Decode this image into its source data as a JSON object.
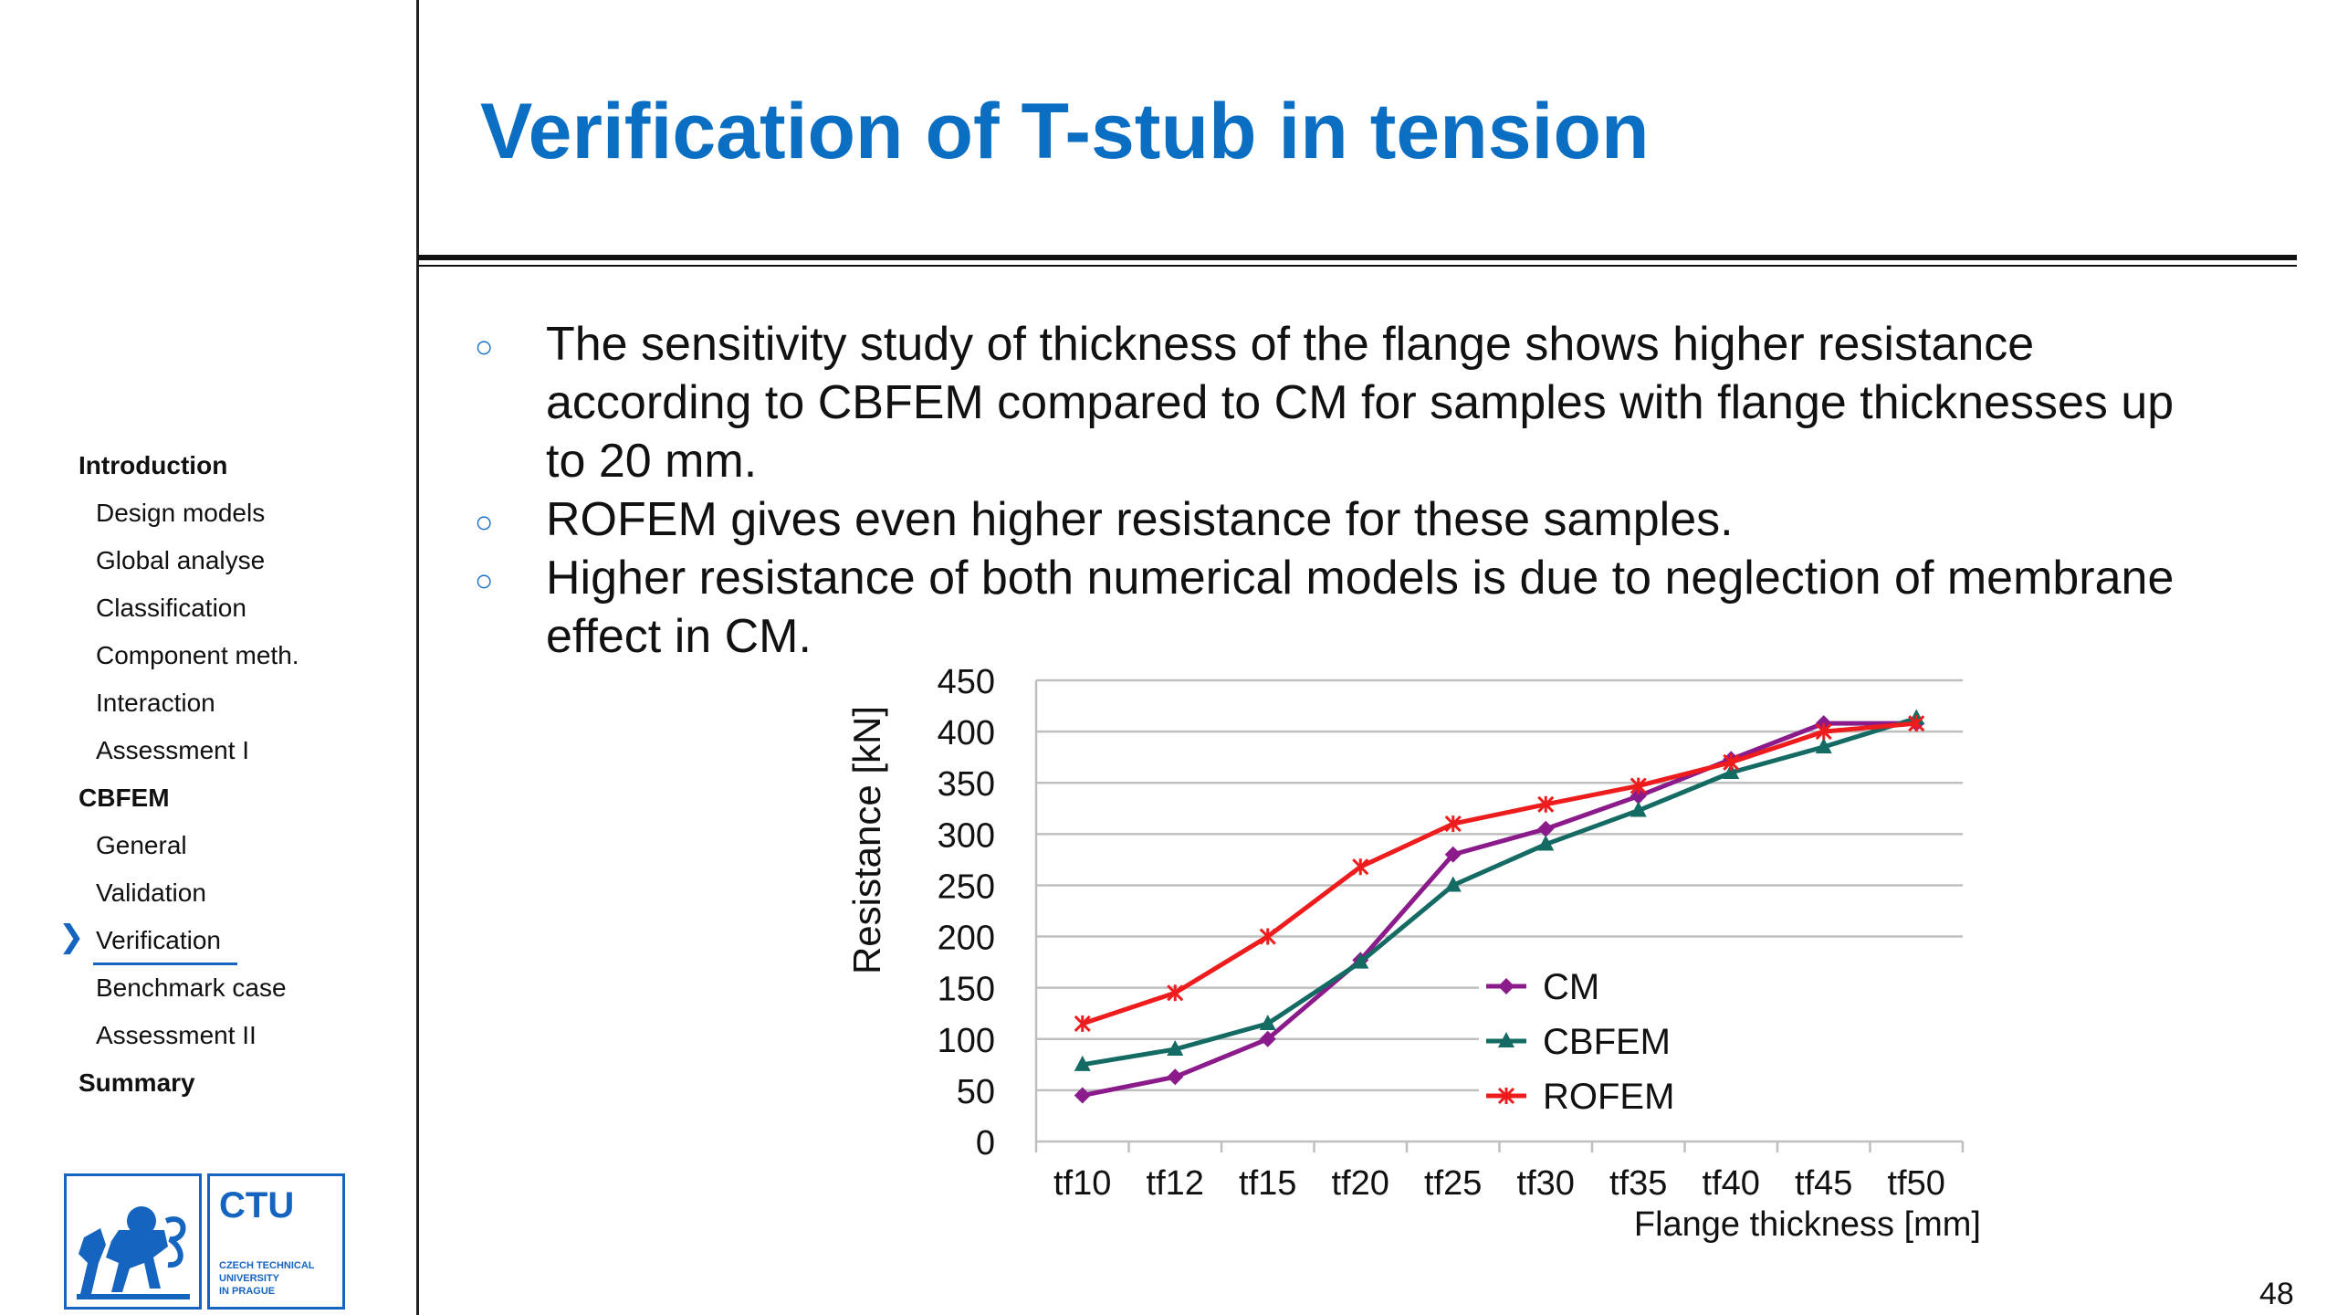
{
  "slide": {
    "title": "Verification of T-stub in tension",
    "page_number": "48"
  },
  "sidebar": {
    "items": [
      {
        "label": "Introduction",
        "level": "section"
      },
      {
        "label": "Design models",
        "level": "sub"
      },
      {
        "label": "Global analyse",
        "level": "sub"
      },
      {
        "label": "Classification",
        "level": "sub"
      },
      {
        "label": "Component meth.",
        "level": "sub"
      },
      {
        "label": "Interaction",
        "level": "sub"
      },
      {
        "label": "Assessment I",
        "level": "sub"
      },
      {
        "label": "CBFEM",
        "level": "section"
      },
      {
        "label": "General",
        "level": "sub"
      },
      {
        "label": "Validation",
        "level": "sub"
      },
      {
        "label": "Verification",
        "level": "sub",
        "active": true
      },
      {
        "label": "Benchmark case",
        "level": "sub"
      },
      {
        "label": "Assessment II",
        "level": "sub"
      },
      {
        "label": "Summary",
        "level": "section"
      }
    ],
    "active_marker": "❯",
    "accent_color": "#1565c0"
  },
  "logo": {
    "abbr": "CTU",
    "name_line1": "CZECH TECHNICAL",
    "name_line2": "UNIVERSITY",
    "name_line3": "IN PRAGUE",
    "color": "#1565c0"
  },
  "bullets": [
    {
      "line1": "The sensitivity study of thickness of the flange shows higher resistance",
      "line2": "according to CBFEM compared to CM for samples with flange thicknesses up",
      "line3": "to 20 mm."
    },
    {
      "line1": "ROFEM gives even higher resistance for these samples."
    },
    {
      "line1": "Higher resistance of both numerical models is due to neglection of membrane",
      "line2": "effect in CM."
    }
  ],
  "bullet_symbol": "○",
  "chart_data": {
    "type": "line",
    "title": "",
    "xlabel": "Flange thickness [mm]",
    "ylabel": "Resistance [kN]",
    "categories": [
      "tf10",
      "tf12",
      "tf15",
      "tf20",
      "tf25",
      "tf30",
      "tf35",
      "tf40",
      "tf45",
      "tf50"
    ],
    "ylim": [
      0,
      450
    ],
    "yticks": [
      0,
      50,
      100,
      150,
      200,
      250,
      300,
      350,
      400,
      450
    ],
    "grid": true,
    "legend_position": "center-right",
    "series": [
      {
        "name": "CM",
        "color": "#8b1a8b",
        "marker": "diamond",
        "values": [
          45,
          63,
          100,
          177,
          280,
          305,
          337,
          373,
          408,
          408
        ]
      },
      {
        "name": "CBFEM",
        "color": "#146b63",
        "marker": "triangle",
        "values": [
          75,
          90,
          115,
          175,
          250,
          290,
          323,
          360,
          385,
          413
        ]
      },
      {
        "name": "ROFEM",
        "color": "#ee1c1c",
        "marker": "star",
        "values": [
          115,
          145,
          200,
          268,
          310,
          329,
          347,
          370,
          400,
          408
        ]
      }
    ]
  }
}
